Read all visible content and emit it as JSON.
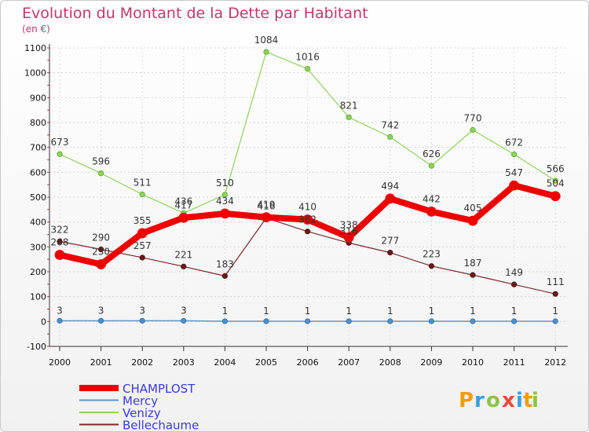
{
  "chart_data": {
    "type": "line",
    "title": "Evolution du Montant de la Dette par Habitant",
    "subtitle": "(en €)",
    "xlabel": "",
    "ylabel": "",
    "categories": [
      "2000",
      "2001",
      "2002",
      "2003",
      "2004",
      "2005",
      "2006",
      "2007",
      "2008",
      "2009",
      "2010",
      "2011",
      "2012"
    ],
    "ylim": [
      -100,
      1100
    ],
    "yticks": [
      "-100",
      "0",
      "100",
      "200",
      "300",
      "400",
      "500",
      "600",
      "700",
      "800",
      "900",
      "1000",
      "1100"
    ],
    "grid": true,
    "legend_position": "bottom-left",
    "series": [
      {
        "name": "Venizy",
        "color": "#8fd35a",
        "values": [
          673,
          596,
          511,
          436,
          510,
          1084,
          1016,
          821,
          742,
          626,
          770,
          672,
          566
        ]
      },
      {
        "name": "Bellechaume",
        "color": "#7a2a2a",
        "values": [
          322,
          290,
          257,
          221,
          183,
          416,
          362,
          316,
          277,
          223,
          187,
          149,
          111
        ]
      },
      {
        "name": "Mercy",
        "color": "#5b97cc",
        "values": [
          3,
          3,
          3,
          3,
          1,
          1,
          1,
          1,
          1,
          1,
          1,
          1,
          1
        ]
      },
      {
        "name": "CHAMPLOST",
        "color": "#ee0000",
        "values": [
          268,
          230,
          355,
          417,
          434,
          419,
          410,
          338,
          494,
          442,
          405,
          547,
          504
        ]
      }
    ]
  },
  "legend": {
    "items": [
      "CHAMPLOST",
      "Mercy",
      "Venizy",
      "Bellechaume"
    ]
  },
  "logo": {
    "letters": [
      "P",
      "r",
      "o",
      "x",
      "i",
      "t",
      "i"
    ]
  }
}
